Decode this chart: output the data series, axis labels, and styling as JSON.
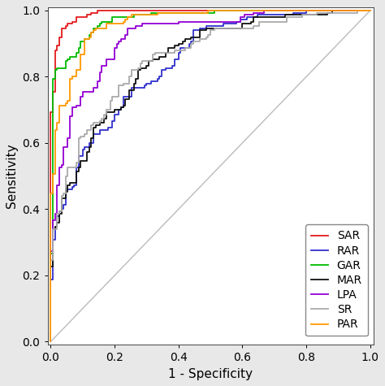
{
  "title": "",
  "xlabel": "1 - Specificity",
  "ylabel": "Sensitivity",
  "xlim": [
    -0.01,
    1.01
  ],
  "ylim": [
    -0.01,
    1.01
  ],
  "xticks": [
    0.0,
    0.2,
    0.4,
    0.6,
    0.8,
    1.0
  ],
  "yticks": [
    0.0,
    0.2,
    0.4,
    0.6,
    0.8,
    1.0
  ],
  "diagonal_color": "#bbbbbb",
  "background_color": "#e8e8e8",
  "plot_bg_color": "#ffffff",
  "legend_labels": [
    "SAR",
    "RAR",
    "GAR",
    "MAR",
    "LPA",
    "SR",
    "PAR"
  ],
  "line_colors": [
    "#e41a1c",
    "#3030cc",
    "#00bb00",
    "#111111",
    "#9400d3",
    "#aaaaaa",
    "#ff9900"
  ],
  "line_widths": [
    1.3,
    1.3,
    1.3,
    1.3,
    1.3,
    1.3,
    1.3
  ],
  "font_size": 11,
  "tick_font_size": 10,
  "legend_font_size": 10,
  "curve_params": {
    "SAR": {
      "sep": 3.2,
      "n": 150,
      "seed": 101
    },
    "RAR": {
      "sep": 1.3,
      "n": 150,
      "seed": 202
    },
    "GAR": {
      "sep": 2.4,
      "n": 150,
      "seed": 303
    },
    "MAR": {
      "sep": 1.55,
      "n": 150,
      "seed": 404
    },
    "LPA": {
      "sep": 2.0,
      "n": 150,
      "seed": 505
    },
    "SR": {
      "sep": 1.65,
      "n": 150,
      "seed": 606
    },
    "PAR": {
      "sep": 2.7,
      "n": 150,
      "seed": 707
    }
  }
}
